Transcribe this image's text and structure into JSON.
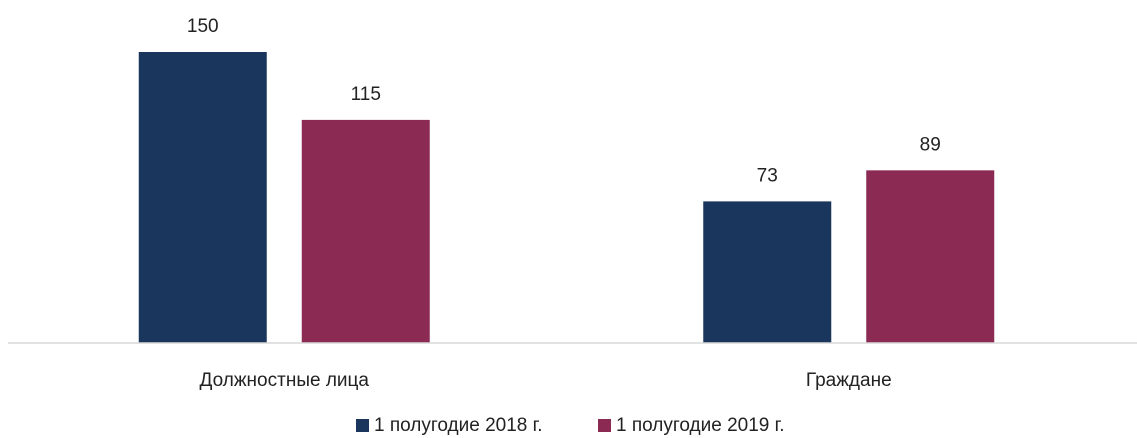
{
  "chart_data": {
    "type": "bar",
    "categories": [
      "Должностные лица",
      "Граждане"
    ],
    "series": [
      {
        "name": "1 полугодие 2018 г.",
        "color": "#1b365d",
        "values": [
          150,
          73
        ]
      },
      {
        "name": "1 полугодие 2019 г.",
        "color": "#8b2a52",
        "values": [
          115,
          89
        ]
      }
    ]
  }
}
